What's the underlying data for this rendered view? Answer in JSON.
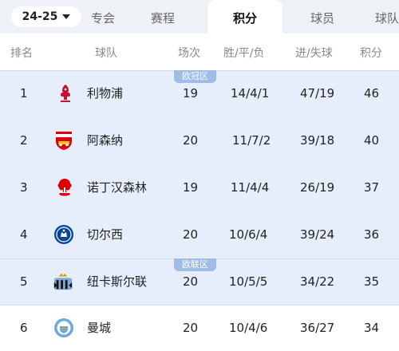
{
  "season_selector": {
    "label": "24-25"
  },
  "tabs": [
    {
      "label": "专会"
    },
    {
      "label": "赛程"
    },
    {
      "label": "积分",
      "active": true
    },
    {
      "label": "球员"
    },
    {
      "label": "球队"
    }
  ],
  "table": {
    "headers": {
      "rank": "排名",
      "team": "球队",
      "played": "场次",
      "wdl": "胜/平/负",
      "goals": "进/失球",
      "points": "积分"
    },
    "zones": {
      "ucl": "欧冠区",
      "uel": "欧联区"
    },
    "rows": [
      {
        "rank": "1",
        "team": "利物浦",
        "crest": "liverpool-crest-icon",
        "played": "19",
        "wdl": "14/4/1",
        "goals": "47/19",
        "points": "46"
      },
      {
        "rank": "2",
        "team": "阿森纳",
        "crest": "arsenal-crest-icon",
        "played": "20",
        "wdl": "11/7/2",
        "goals": "39/18",
        "points": "40"
      },
      {
        "rank": "3",
        "team": "诺丁汉森林",
        "crest": "nottingham-forest-crest-icon",
        "played": "19",
        "wdl": "11/4/4",
        "goals": "26/19",
        "points": "37"
      },
      {
        "rank": "4",
        "team": "切尔西",
        "crest": "chelsea-crest-icon",
        "played": "20",
        "wdl": "10/6/4",
        "goals": "39/24",
        "points": "36"
      },
      {
        "rank": "5",
        "team": "纽卡斯尔联",
        "crest": "newcastle-crest-icon",
        "played": "20",
        "wdl": "10/5/5",
        "goals": "34/22",
        "points": "35"
      },
      {
        "rank": "6",
        "team": "曼城",
        "crest": "manchester-city-crest-icon",
        "played": "20",
        "wdl": "10/4/6",
        "goals": "36/27",
        "points": "34"
      }
    ]
  },
  "colors": {
    "zone_background": "#e6eefb",
    "zone_tag": "#9fbbe6",
    "tabbar_background": "#eef1f6"
  }
}
